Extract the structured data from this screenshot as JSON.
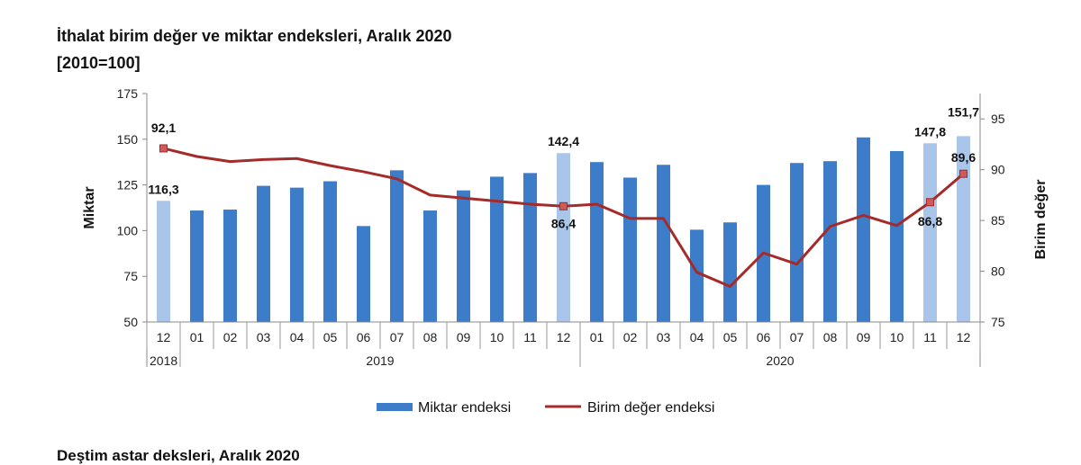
{
  "title": "İthalat birim değer ve miktar endeksleri, Aralık 2020",
  "subtitle": "[2010=100]",
  "next_title": "Deştim astar deksleri, Aralık 2020",
  "chart_data": {
    "type": "bar+line",
    "categories": [
      "12",
      "01",
      "02",
      "03",
      "04",
      "05",
      "06",
      "07",
      "08",
      "09",
      "10",
      "11",
      "12",
      "01",
      "02",
      "03",
      "04",
      "05",
      "06",
      "07",
      "08",
      "09",
      "10",
      "11",
      "12"
    ],
    "years": [
      {
        "label": "2018",
        "start": 0,
        "end": 0
      },
      {
        "label": "2019",
        "start": 1,
        "end": 12
      },
      {
        "label": "2020",
        "start": 13,
        "end": 24
      }
    ],
    "series": [
      {
        "name": "Miktar endeksi",
        "type": "bar",
        "axis": "left",
        "color": "#3d7cc9",
        "highlight_color": "#a9c6ea",
        "highlight_indices": [
          0,
          12,
          23,
          24
        ],
        "values": [
          116.3,
          111,
          111.5,
          124.5,
          123.5,
          127,
          102.5,
          133,
          111,
          122,
          129.5,
          131.5,
          142.4,
          137.5,
          129,
          136,
          100.5,
          104.5,
          125,
          137,
          138,
          151,
          143.5,
          147.8,
          151.7
        ]
      },
      {
        "name": "Birim değer endeksi",
        "type": "line",
        "axis": "right",
        "color": "#a52a2a",
        "marker_color": "#d05a5a",
        "marker_indices": [
          0,
          12,
          23,
          24
        ],
        "values": [
          92.1,
          91.3,
          90.8,
          91.0,
          91.1,
          90.4,
          89.8,
          89.1,
          87.5,
          87.2,
          86.9,
          86.6,
          86.4,
          86.6,
          85.2,
          85.2,
          79.9,
          78.5,
          81.8,
          80.7,
          84.4,
          85.5,
          84.5,
          86.8,
          89.6
        ]
      }
    ],
    "data_labels": [
      {
        "series": 0,
        "index": 0,
        "text": "116,3"
      },
      {
        "series": 0,
        "index": 12,
        "text": "142,4"
      },
      {
        "series": 0,
        "index": 23,
        "text": "147,8"
      },
      {
        "series": 0,
        "index": 24,
        "text": "151,7"
      },
      {
        "series": 1,
        "index": 0,
        "text": "92,1"
      },
      {
        "series": 1,
        "index": 12,
        "text": "86,4"
      },
      {
        "series": 1,
        "index": 23,
        "text": "86,8"
      },
      {
        "series": 1,
        "index": 24,
        "text": "89,6"
      }
    ],
    "ylabel_left": "Miktar",
    "ylabel_right": "Birim değer",
    "ylim_left": [
      50,
      175
    ],
    "yticks_left": [
      "50",
      "75",
      "100",
      "125",
      "150",
      "175"
    ],
    "ylim_right": [
      75,
      97.5
    ],
    "yticks_right": [
      "75",
      "80",
      "85",
      "90",
      "95"
    ],
    "legend": [
      "Miktar endeksi",
      "Birim değer endeksi"
    ],
    "legend_position": "bottom",
    "grid": false
  }
}
